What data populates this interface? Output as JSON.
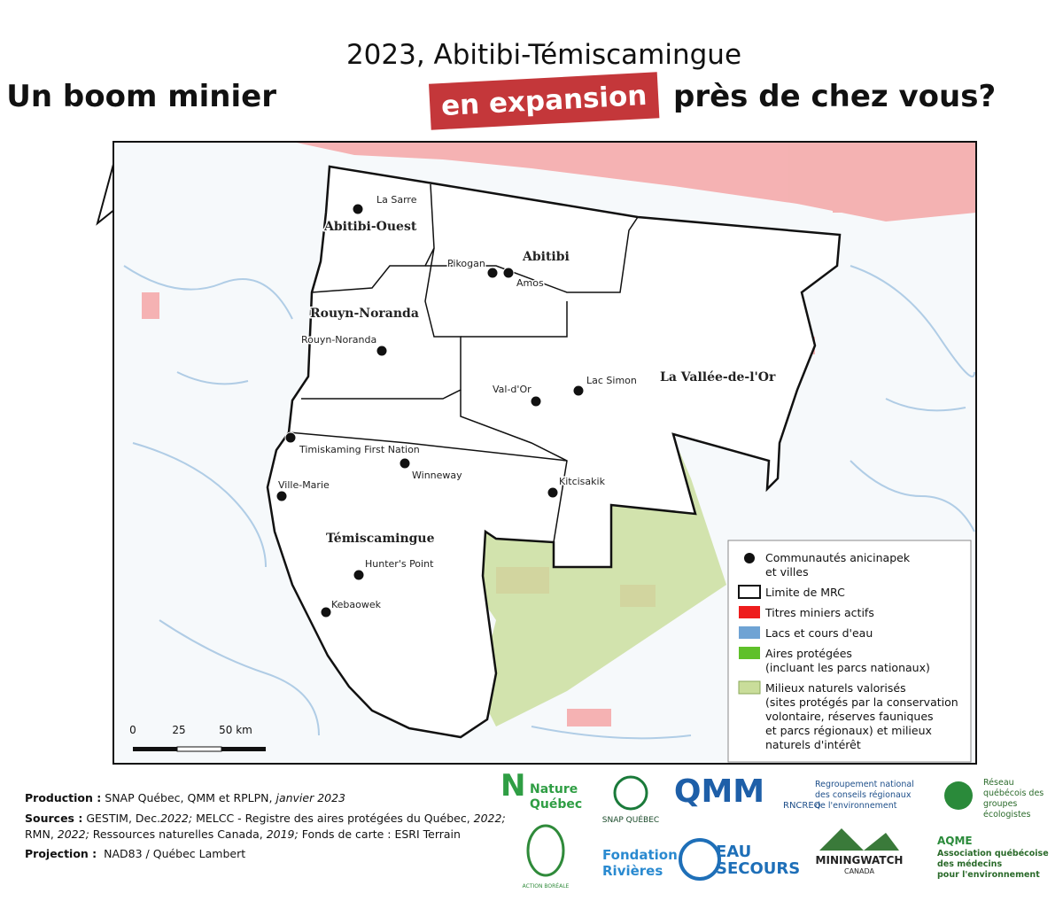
{
  "header": {
    "title_line1": "2023, Abitibi-Témiscamingue",
    "title_before": "Un boom minier",
    "title_highlight": "en expansion",
    "title_after": "près de chez vous?"
  },
  "map": {
    "mrc_labels": [
      "Abitibi-Ouest",
      "Abitibi",
      "Rouyn-Noranda",
      "La Vallée-de-l'Or",
      "Témiscamingue"
    ],
    "communities": [
      "La Sarre",
      "Pikogan",
      "Amos",
      "Rouyn-Noranda",
      "Val-d'Or",
      "Lac Simon",
      "Timiskaming First Nation",
      "Winneway",
      "Ville-Marie",
      "Kitcisakik",
      "Hunter's Point",
      "Kebaowek"
    ],
    "scale_labels": [
      "0",
      "25",
      "50 km"
    ]
  },
  "legend": {
    "items": [
      [
        "Communautés anicinapek",
        "et villes"
      ],
      [
        "Limite de MRC"
      ],
      [
        "Titres miniers actifs"
      ],
      [
        "Lacs et cours d'eau"
      ],
      [
        "Aires protégées",
        "(incluant les parcs nationaux)"
      ],
      [
        "Milieux naturels valorisés",
        "(sites protégés par la conservation",
        "volontaire, réserves fauniques",
        "et parcs régionaux) et milieux",
        "naturels d'intérêt"
      ]
    ]
  },
  "footer": {
    "production": [
      "Production :",
      " SNAP Québec, QMM et RPLPN, ",
      "janvier 2023"
    ],
    "sources": [
      "Sources :",
      " GESTIM, Dec.",
      "2022;",
      " MELCC - Registre des aires protégées du Québec, ",
      "2022;"
    ],
    "sources_line2": [
      "RMN, ",
      "2022;",
      " Ressources naturelles Canada, ",
      "2019;",
      " Fonds de carte : ESRI Terrain"
    ],
    "projection": [
      "Projection :",
      "  NAD83 / Québec Lambert"
    ]
  },
  "logos": [
    "Nature",
    "Québec",
    "SNAP QUÉBEC",
    "QMM",
    "Regroupement national",
    "des conseils régionaux",
    "de l'environnement",
    "RNCREQ",
    "Réseau",
    "québécois des",
    "groupes",
    "écologistes",
    "ACTION BORÉALE",
    "Fondation",
    "Rivières",
    "EAU",
    "SECOURS",
    "MININGWATCH",
    "CANADA",
    "AQME",
    "Association québécoise",
    "des médecins",
    "pour l'environnement"
  ]
}
